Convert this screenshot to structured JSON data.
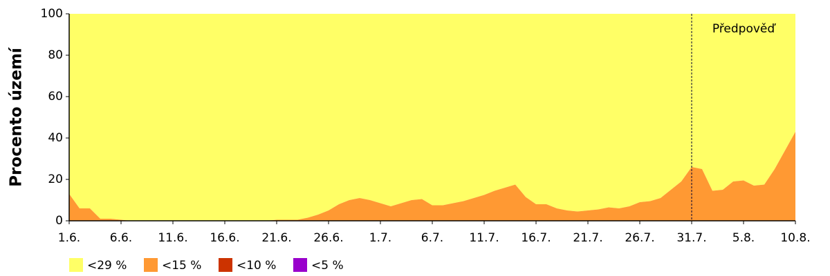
{
  "chart_data": {
    "type": "stacked_area",
    "y_label": "Procento území",
    "categories": [
      "1.6.",
      null,
      null,
      null,
      null,
      "6.6.",
      null,
      null,
      null,
      null,
      "11.6.",
      null,
      null,
      null,
      null,
      "16.6.",
      null,
      null,
      null,
      null,
      "21.6.",
      null,
      null,
      null,
      null,
      "26.6.",
      null,
      null,
      null,
      null,
      "1.7.",
      null,
      null,
      null,
      null,
      "6.7.",
      null,
      null,
      null,
      null,
      "11.7.",
      null,
      null,
      null,
      null,
      "16.7.",
      null,
      null,
      null,
      null,
      "21.7.",
      null,
      null,
      null,
      null,
      "26.7.",
      null,
      null,
      null,
      null,
      "31.7.",
      null,
      null,
      null,
      null,
      "5.8.",
      null,
      null,
      null,
      null,
      "10.8."
    ],
    "series": [
      {
        "name": "<29 %",
        "color": "#ffff66",
        "values": [
          87,
          94,
          94,
          99,
          99,
          99.5,
          100,
          100,
          100,
          100,
          100,
          100,
          100,
          100,
          100,
          100,
          100,
          100,
          100,
          100,
          99.5,
          99.5,
          99.5,
          98.5,
          97,
          95,
          92,
          90,
          89,
          90,
          91.5,
          93,
          91.5,
          90,
          89.5,
          92.5,
          92.5,
          91.5,
          90.5,
          89,
          87.5,
          85.5,
          84,
          82.5,
          88.5,
          92,
          92,
          94,
          95,
          95.5,
          95,
          94.5,
          93.5,
          94,
          93,
          91,
          90.5,
          89,
          85,
          81,
          74,
          75,
          85.5,
          85,
          81,
          80.5,
          83,
          82.5,
          75,
          66,
          57
        ]
      },
      {
        "name": "<15 %",
        "color": "#ff9933",
        "values": [
          13,
          6,
          6,
          1,
          1,
          0.5,
          0,
          0,
          0,
          0,
          0,
          0,
          0,
          0,
          0,
          0,
          0,
          0,
          0,
          0,
          0.5,
          0.5,
          0.5,
          1.5,
          3,
          5,
          8,
          10,
          11,
          10,
          8.5,
          7,
          8.5,
          10,
          10.5,
          7.5,
          7.5,
          8.5,
          9.5,
          11,
          12.5,
          14.5,
          16,
          17.5,
          11.5,
          8,
          8,
          6,
          5,
          4.5,
          5,
          5.5,
          6.5,
          6,
          7,
          9,
          9.5,
          11,
          15,
          19,
          26,
          25,
          14.5,
          15,
          19,
          19.5,
          17,
          17.5,
          25,
          34,
          43
        ]
      },
      {
        "name": "<10 %",
        "color": "#cc3300",
        "values": [
          0,
          0,
          0,
          0,
          0,
          0,
          0,
          0,
          0,
          0,
          0,
          0,
          0,
          0,
          0,
          0,
          0,
          0,
          0,
          0,
          0,
          0,
          0,
          0,
          0,
          0,
          0,
          0,
          0,
          0,
          0,
          0,
          0,
          0,
          0,
          0,
          0,
          0,
          0,
          0,
          0,
          0,
          0,
          0,
          0,
          0,
          0,
          0,
          0,
          0,
          0,
          0,
          0,
          0,
          0,
          0,
          0,
          0,
          0,
          0,
          0,
          0,
          0,
          0,
          0,
          0,
          0,
          0,
          0,
          0,
          0
        ]
      },
      {
        "name": "<5 %",
        "color": "#9900cc",
        "values": [
          0,
          0,
          0,
          0,
          0,
          0,
          0,
          0,
          0,
          0,
          0,
          0,
          0,
          0,
          0,
          0,
          0,
          0,
          0,
          0,
          0,
          0,
          0,
          0,
          0,
          0,
          0,
          0,
          0,
          0,
          0,
          0,
          0,
          0,
          0,
          0,
          0,
          0,
          0,
          0,
          0,
          0,
          0,
          0,
          0,
          0,
          0,
          0,
          0,
          0,
          0,
          0,
          0,
          0,
          0,
          0,
          0,
          0,
          0,
          0,
          0,
          0,
          0,
          0,
          0,
          0,
          0,
          0,
          0,
          0,
          0
        ]
      }
    ],
    "ylim": [
      0,
      100
    ],
    "yticks": [
      0,
      20,
      40,
      60,
      80,
      100
    ],
    "grid": false,
    "legend": "bottom",
    "annotation": {
      "at": "31.7.",
      "label": "Předpověď"
    }
  }
}
